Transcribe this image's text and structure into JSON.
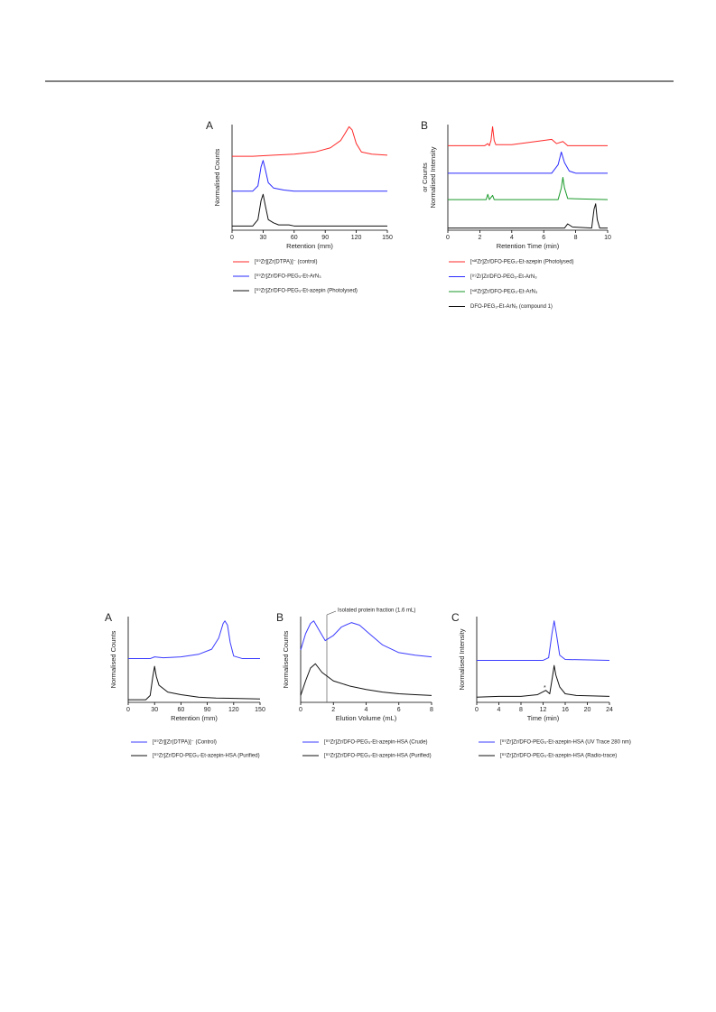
{
  "chart_data": [
    {
      "type": "line",
      "panel": "A",
      "xlabel": "Retention (mm)",
      "ylabel": [
        "Normalised Counts"
      ],
      "xlim": [
        0,
        150
      ],
      "xticks": [
        0,
        30,
        60,
        90,
        120,
        150
      ],
      "ylim": [
        0,
        1
      ],
      "series": [
        {
          "name": "[⁸⁹Zr][Zr(DTPA)]⁻ (control)",
          "color": "#ff2a2a",
          "x": [
            0,
            20,
            40,
            60,
            80,
            95,
            105,
            110,
            113,
            116,
            120,
            125,
            135,
            150
          ],
          "values": [
            0.7,
            0.7,
            0.71,
            0.72,
            0.74,
            0.78,
            0.85,
            0.93,
            0.98,
            0.95,
            0.82,
            0.74,
            0.72,
            0.71
          ]
        },
        {
          "name": "[⁸⁹Zr]Zr/DFO-PEG₃-Et-ArN₃",
          "color": "#2a2aff",
          "x": [
            0,
            20,
            25,
            28,
            30,
            32,
            35,
            40,
            50,
            60,
            150
          ],
          "values": [
            0.37,
            0.37,
            0.42,
            0.6,
            0.66,
            0.58,
            0.45,
            0.4,
            0.38,
            0.37,
            0.37
          ]
        },
        {
          "name": "[⁸⁹Zr]Zr/DFO-PEG₃-Et-azepin (Photolysed)",
          "color": "#111111",
          "x": [
            0,
            20,
            25,
            28,
            30,
            32,
            35,
            40,
            45,
            55,
            60,
            150
          ],
          "values": [
            0.04,
            0.04,
            0.1,
            0.28,
            0.34,
            0.24,
            0.1,
            0.07,
            0.05,
            0.05,
            0.04,
            0.04
          ]
        }
      ]
    },
    {
      "type": "line",
      "panel": "B",
      "xlabel": "Retention Time (min)",
      "ylabel": [
        "Normalised Intensity",
        "or Counts"
      ],
      "xlim": [
        0,
        10
      ],
      "xticks": [
        0,
        2,
        4,
        6,
        8,
        10
      ],
      "ylim": [
        0,
        1
      ],
      "series": [
        {
          "name": "[ⁿᵃᵗZr]Zr/DFO-PEG₃-Et-azepin (Photolysed)",
          "color": "#ff2a2a",
          "x": [
            0,
            2.3,
            2.5,
            2.6,
            2.7,
            2.8,
            2.9,
            3.0,
            4.0,
            5.5,
            6.5,
            6.8,
            7.2,
            7.5,
            10
          ],
          "values": [
            0.8,
            0.8,
            0.82,
            0.8,
            0.85,
            0.98,
            0.85,
            0.81,
            0.81,
            0.84,
            0.86,
            0.82,
            0.84,
            0.8,
            0.8
          ]
        },
        {
          "name": "[⁸⁹Zr]Zr/DFO-PEG₃-Et-ArN₃",
          "color": "#2a2aff",
          "x": [
            0,
            6.5,
            6.9,
            7.1,
            7.3,
            7.6,
            8,
            10
          ],
          "values": [
            0.54,
            0.54,
            0.62,
            0.74,
            0.64,
            0.56,
            0.54,
            0.54
          ]
        },
        {
          "name": "[ⁿᵃᵗZr]Zr/DFO-PEG₃-Et-ArN₃",
          "color": "#1a9a2a",
          "x": [
            0,
            2.4,
            2.5,
            2.6,
            2.8,
            2.9,
            6.9,
            7.1,
            7.2,
            7.3,
            7.5,
            10
          ],
          "values": [
            0.29,
            0.29,
            0.34,
            0.29,
            0.33,
            0.29,
            0.29,
            0.4,
            0.5,
            0.4,
            0.3,
            0.29
          ]
        },
        {
          "name": "DFO-PEG₃-Et-ArN₃ (compound 1)",
          "color": "#111111",
          "x": [
            0,
            7.3,
            7.5,
            7.8,
            9.0,
            9.15,
            9.25,
            9.35,
            9.5,
            10
          ],
          "values": [
            0.02,
            0.02,
            0.06,
            0.03,
            0.02,
            0.2,
            0.25,
            0.1,
            0.02,
            0.02
          ]
        }
      ]
    },
    {
      "type": "line",
      "panel": "A",
      "xlabel": "Retention (mm)",
      "ylabel": [
        "Normalised Counts"
      ],
      "xlim": [
        0,
        150
      ],
      "xticks": [
        0,
        30,
        60,
        90,
        120,
        150
      ],
      "ylim": [
        0,
        1
      ],
      "series": [
        {
          "name": "[⁸⁹Zr][Zr(DTPA)]⁻ (Control)",
          "color": "#3b3bff",
          "x": [
            0,
            25,
            30,
            40,
            60,
            80,
            95,
            103,
            108,
            110,
            113,
            116,
            120,
            130,
            150
          ],
          "values": [
            0.51,
            0.51,
            0.53,
            0.52,
            0.53,
            0.56,
            0.62,
            0.75,
            0.92,
            0.95,
            0.9,
            0.7,
            0.54,
            0.51,
            0.51
          ]
        },
        {
          "name": "[⁸⁹Zr]Zr/DFO-PEG₃-Et-azepin-HSA (Purified)",
          "color": "#111111",
          "x": [
            0,
            20,
            25,
            28,
            30,
            32,
            35,
            45,
            60,
            80,
            100,
            150
          ],
          "values": [
            0.03,
            0.03,
            0.08,
            0.3,
            0.42,
            0.3,
            0.2,
            0.12,
            0.09,
            0.06,
            0.05,
            0.04
          ]
        }
      ]
    },
    {
      "type": "line",
      "panel": "B",
      "xlabel": "Elution Volume (mL)",
      "ylabel": [
        "Normalised Counts"
      ],
      "xlim": [
        0,
        8
      ],
      "xticks": [
        0,
        2,
        4,
        6,
        8
      ],
      "ylim": [
        0,
        1
      ],
      "annotation": {
        "text": "Isolated protein fraction (1.6 mL)",
        "x": 1.6
      },
      "series": [
        {
          "name": "[⁸⁹Zr]Zr/DFO-PEG₃-Et-azepin-HSA (Crude)",
          "color": "#3b3bff",
          "x": [
            0,
            0.3,
            0.6,
            0.8,
            1.1,
            1.5,
            2,
            2.5,
            3.1,
            3.6,
            4.2,
            5,
            6,
            7,
            8
          ],
          "values": [
            0.61,
            0.8,
            0.92,
            0.95,
            0.85,
            0.72,
            0.78,
            0.88,
            0.93,
            0.9,
            0.8,
            0.67,
            0.58,
            0.55,
            0.53
          ]
        },
        {
          "name": "[⁸⁹Zr]Zr/DFO-PEG₃-Et-azepin-HSA (Purified)",
          "color": "#111111",
          "x": [
            0,
            0.3,
            0.6,
            0.9,
            1.3,
            2,
            3,
            4,
            5,
            6,
            7,
            8
          ],
          "values": [
            0.08,
            0.25,
            0.4,
            0.45,
            0.35,
            0.25,
            0.19,
            0.15,
            0.12,
            0.1,
            0.09,
            0.08
          ]
        }
      ]
    },
    {
      "type": "line",
      "panel": "C",
      "xlabel": "Time (min)",
      "ylabel": [
        "Normalised Intensity"
      ],
      "xlim": [
        0,
        24
      ],
      "xticks": [
        0,
        4,
        8,
        12,
        16,
        20,
        24
      ],
      "ylim": [
        0,
        1
      ],
      "marker_note": "*",
      "series": [
        {
          "name": "[⁸⁹Zr]Zr/DFO-PEG₃-Et-azepin-HSA (UV Trace 280 nm)",
          "color": "#3b3bff",
          "x": [
            0,
            12,
            13,
            13.6,
            14,
            14.4,
            15,
            16,
            24
          ],
          "values": [
            0.49,
            0.49,
            0.52,
            0.8,
            0.95,
            0.8,
            0.55,
            0.5,
            0.49
          ]
        },
        {
          "name": "[⁸⁹Zr]Zr/DFO-PEG₃-Et-azepin-HSA (Radio-trace)",
          "color": "#111111",
          "x": [
            0,
            4,
            8,
            11,
            12.5,
            13.2,
            13.7,
            14,
            14.3,
            15,
            16,
            18,
            24
          ],
          "values": [
            0.06,
            0.07,
            0.07,
            0.09,
            0.14,
            0.1,
            0.3,
            0.43,
            0.32,
            0.18,
            0.1,
            0.08,
            0.07
          ]
        }
      ]
    }
  ]
}
